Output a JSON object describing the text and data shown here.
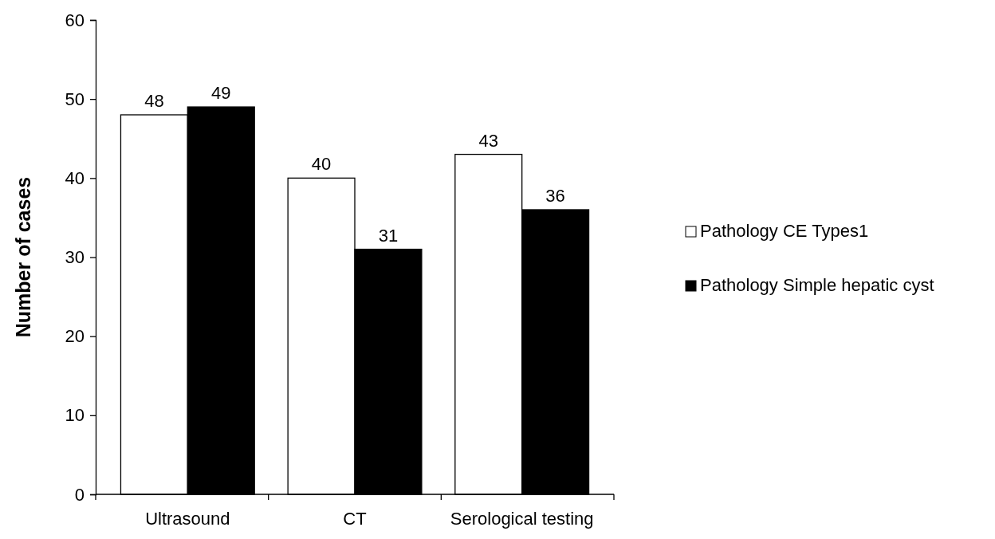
{
  "chart_data": {
    "type": "bar",
    "ylabel": "Number of cases",
    "categories": [
      "Ultrasound",
      "CT",
      "Serological testing"
    ],
    "series": [
      {
        "name": "Pathology CE Types1",
        "color": "#ffffff",
        "values": [
          48,
          40,
          43
        ]
      },
      {
        "name": "Pathology Simple hepatic cyst",
        "color": "#000000",
        "values": [
          49,
          31,
          36
        ]
      }
    ],
    "ylim": [
      0,
      60
    ],
    "yticks": [
      0,
      10,
      20,
      30,
      40,
      50,
      60
    ],
    "data_labels": true,
    "legend": "right",
    "grid": false
  }
}
